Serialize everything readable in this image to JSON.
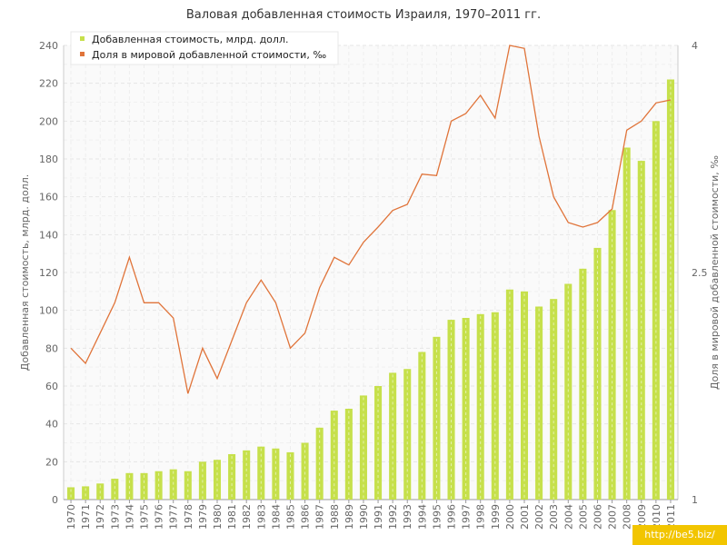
{
  "chart_data": {
    "type": "bar",
    "title": "Валовая добавленная стоимость Израиля, 1970–2011 гг.",
    "xlabel": "",
    "ylabel": "Добавленная стоимость, млрд. долл.",
    "y2label": "Доля в мировой добавленной стоимости, ‰",
    "categories": [
      "1970",
      "1971",
      "1972",
      "1973",
      "1974",
      "1975",
      "1976",
      "1977",
      "1978",
      "1979",
      "1980",
      "1981",
      "1982",
      "1983",
      "1984",
      "1985",
      "1986",
      "1987",
      "1988",
      "1989",
      "1990",
      "1991",
      "1992",
      "1993",
      "1994",
      "1995",
      "1996",
      "1997",
      "1998",
      "1999",
      "2000",
      "2001",
      "2002",
      "2003",
      "2004",
      "2005",
      "2006",
      "2007",
      "2008",
      "2009",
      "2010",
      "2011"
    ],
    "ylim": [
      0,
      240
    ],
    "yticks": [
      "0",
      "20",
      "40",
      "60",
      "80",
      "100",
      "120",
      "140",
      "160",
      "180",
      "200",
      "220",
      "240"
    ],
    "y2lim": [
      1,
      4
    ],
    "y2ticks": [
      "1",
      "2.5",
      "4"
    ],
    "grid": true,
    "legend_position": "top-left",
    "series": [
      {
        "name": "Добавленная стоимость, млрд. долл.",
        "type": "bar",
        "axis": "left",
        "color": "#c6e04b",
        "values": [
          6.5,
          7,
          8.5,
          11,
          14,
          14,
          15,
          16,
          15,
          20,
          21,
          24,
          26,
          28,
          27,
          25,
          30,
          38,
          47,
          48,
          55,
          60,
          67,
          69,
          78,
          86,
          95,
          96,
          98,
          99,
          111,
          110,
          102,
          106,
          114,
          122,
          133,
          153,
          186,
          179,
          200,
          222
        ]
      },
      {
        "name": "Доля в мировой добавленной стоимости, ‰",
        "type": "line",
        "axis": "right",
        "color": "#e0743a",
        "values": [
          2.0,
          1.9,
          2.1,
          2.3,
          2.6,
          2.3,
          2.3,
          2.2,
          1.7,
          2.0,
          1.8,
          2.05,
          2.3,
          2.45,
          2.3,
          2.0,
          2.1,
          2.4,
          2.6,
          2.55,
          2.7,
          2.8,
          2.91,
          2.95,
          3.15,
          3.14,
          3.5,
          3.55,
          3.67,
          3.52,
          4.0,
          3.98,
          3.4,
          3.0,
          2.83,
          2.8,
          2.83,
          2.92,
          3.44,
          3.5,
          3.62,
          3.64
        ]
      }
    ]
  },
  "watermark": "http://be5.biz/"
}
